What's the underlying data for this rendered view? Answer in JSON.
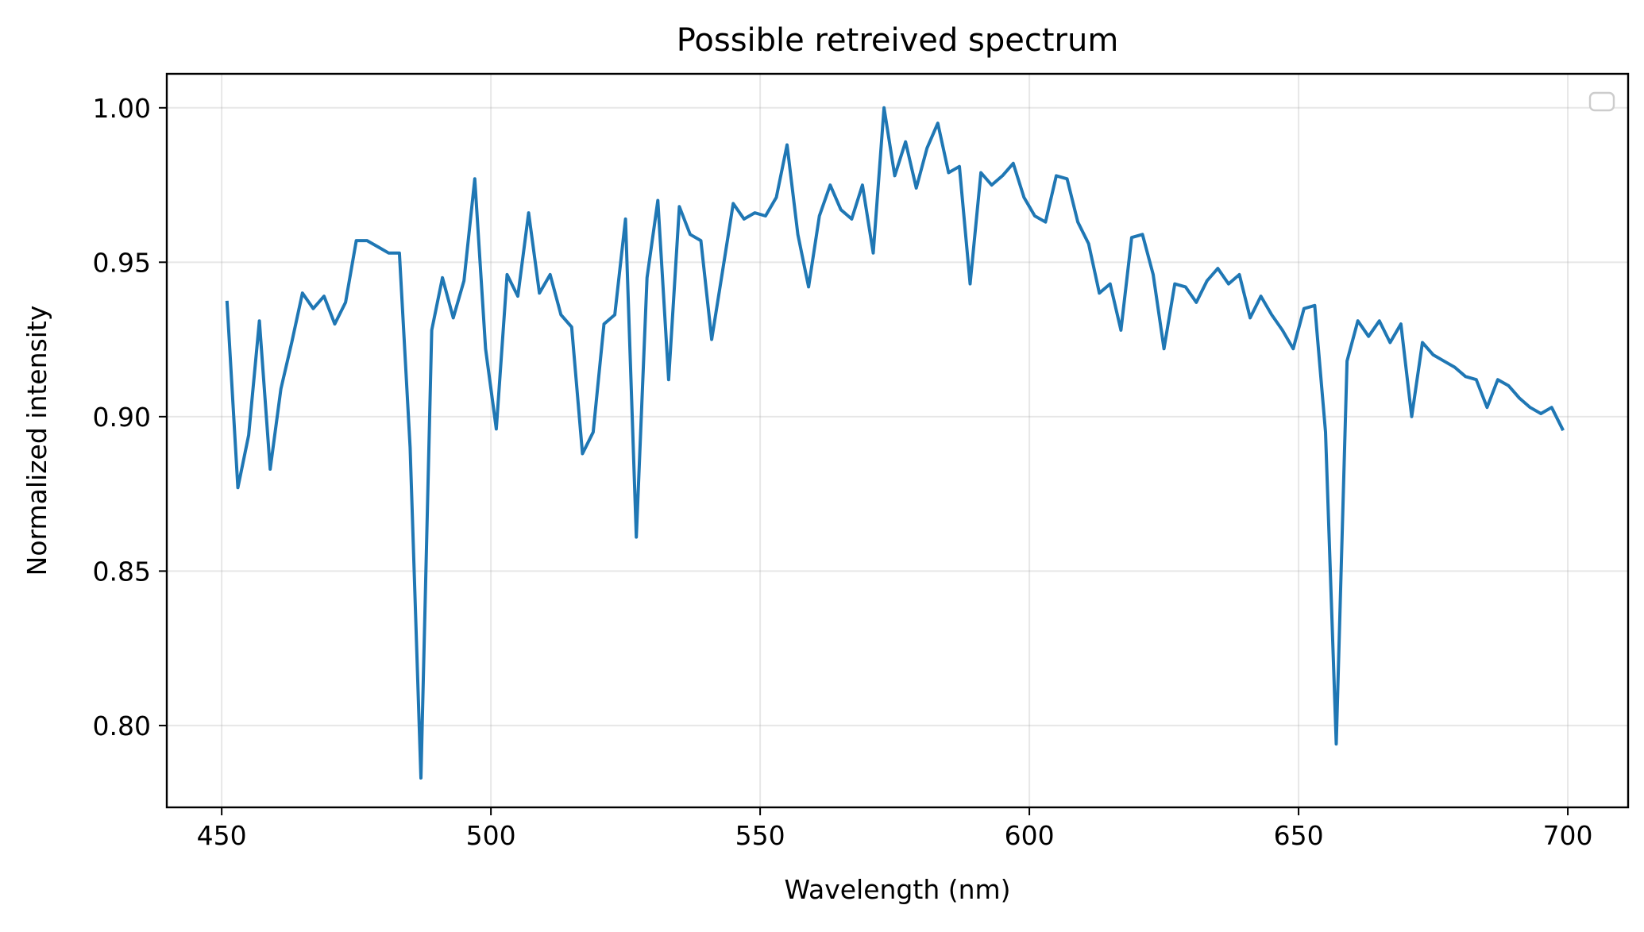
{
  "chart_data": {
    "type": "line",
    "title": "Possible retreived spectrum",
    "xlabel": "Wavelength (nm)",
    "ylabel": "Normalized intensity",
    "xlim": [
      439.8,
      711.2
    ],
    "ylim": [
      0.7735,
      1.011
    ],
    "xticks": [
      450,
      500,
      550,
      600,
      650,
      700
    ],
    "xtick_labels": [
      "450",
      "500",
      "550",
      "600",
      "650",
      "700"
    ],
    "yticks": [
      0.8,
      0.85,
      0.9,
      0.95,
      1.0
    ],
    "ytick_labels": [
      "0.80",
      "0.85",
      "0.90",
      "0.95",
      "1.00"
    ],
    "grid": true,
    "legend": {
      "placement": "upper right",
      "entries": []
    },
    "line_color": "#1f77b4",
    "series": [
      {
        "x": [
          451,
          453,
          455,
          457,
          459,
          461,
          463,
          465,
          467,
          469,
          471,
          473,
          475,
          477,
          479,
          481,
          483,
          485,
          487,
          489,
          491,
          493,
          495,
          497,
          499,
          501,
          503,
          505,
          507,
          509,
          511,
          513,
          515,
          517,
          519,
          521,
          523,
          525,
          527,
          529,
          531,
          533,
          535,
          537,
          539,
          541,
          543,
          545,
          547,
          549,
          551,
          553,
          555,
          557,
          559,
          561,
          563,
          565,
          567,
          569,
          571,
          573,
          575,
          577,
          579,
          581,
          583,
          585,
          587,
          589,
          591,
          593,
          595,
          597,
          599,
          601,
          603,
          605,
          607,
          609,
          611,
          613,
          615,
          617,
          619,
          621,
          623,
          625,
          627,
          629,
          631,
          633,
          635,
          637,
          639,
          641,
          643,
          645,
          647,
          649,
          651,
          653,
          655,
          657,
          659,
          661,
          663,
          665,
          667,
          669,
          671,
          673,
          675,
          677,
          679,
          681,
          683,
          685,
          687,
          689,
          691,
          693,
          695,
          697,
          699
        ],
        "values": [
          0.937,
          0.877,
          0.894,
          0.931,
          0.883,
          0.909,
          0.924,
          0.94,
          0.935,
          0.939,
          0.93,
          0.937,
          0.957,
          0.957,
          0.955,
          0.953,
          0.953,
          0.89,
          0.783,
          0.928,
          0.945,
          0.932,
          0.944,
          0.977,
          0.922,
          0.896,
          0.946,
          0.939,
          0.966,
          0.94,
          0.946,
          0.933,
          0.929,
          0.888,
          0.895,
          0.93,
          0.933,
          0.964,
          0.861,
          0.945,
          0.97,
          0.912,
          0.968,
          0.959,
          0.957,
          0.925,
          0.947,
          0.969,
          0.964,
          0.966,
          0.965,
          0.971,
          0.988,
          0.959,
          0.942,
          0.965,
          0.975,
          0.967,
          0.964,
          0.975,
          0.953,
          1.0,
          0.978,
          0.989,
          0.974,
          0.987,
          0.995,
          0.979,
          0.981,
          0.943,
          0.979,
          0.975,
          0.978,
          0.982,
          0.971,
          0.965,
          0.963,
          0.978,
          0.977,
          0.963,
          0.956,
          0.94,
          0.943,
          0.928,
          0.958,
          0.959,
          0.946,
          0.922,
          0.943,
          0.942,
          0.937,
          0.944,
          0.948,
          0.943,
          0.946,
          0.932,
          0.939,
          0.933,
          0.928,
          0.922,
          0.935,
          0.936,
          0.895,
          0.794,
          0.918,
          0.931,
          0.926,
          0.931,
          0.924,
          0.93,
          0.9,
          0.924,
          0.92,
          0.918,
          0.916,
          0.913,
          0.912,
          0.903,
          0.912,
          0.91,
          0.906,
          0.903,
          0.901,
          0.903,
          0.896
        ]
      }
    ]
  }
}
